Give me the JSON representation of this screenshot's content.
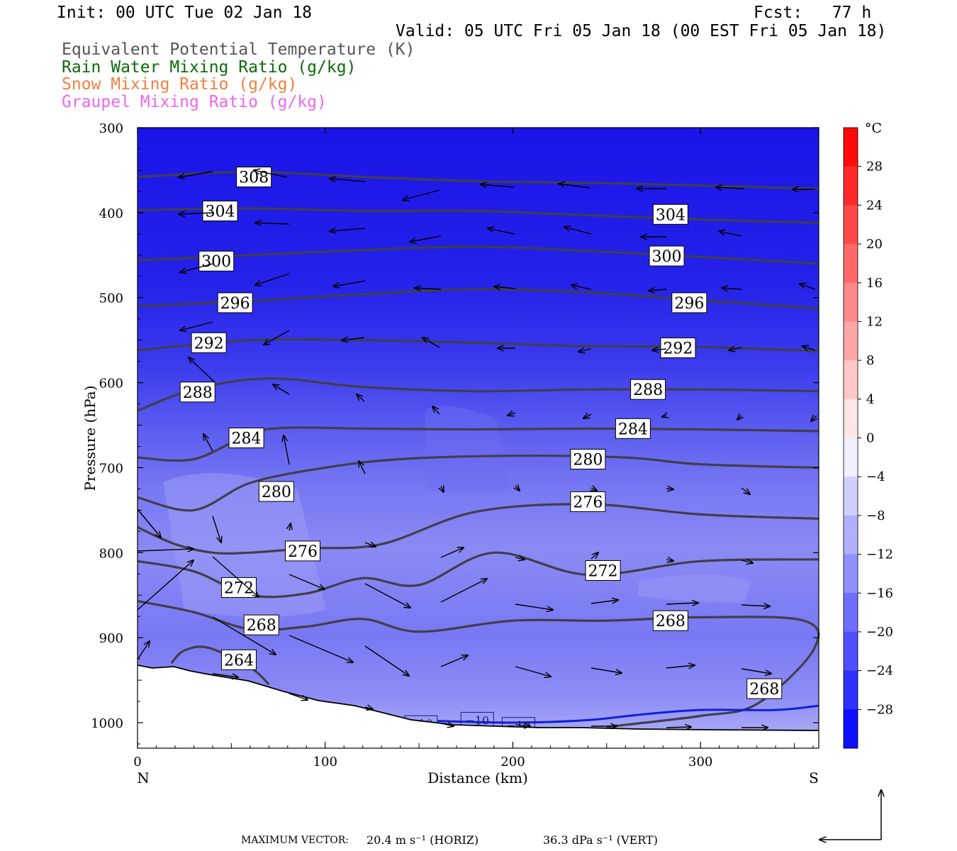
{
  "header": {
    "init": "Init: 00 UTC Tue 02 Jan 18",
    "fcst": "Fcst:   77 h",
    "valid": "Valid: 05 UTC Fri 05 Jan 18 (00 EST Fri 05 Jan 18)"
  },
  "legend": [
    {
      "label": "Equivalent Potential Temperature (K)",
      "color": "#555555"
    },
    {
      "label": "Rain Water Mixing Ratio (g/kg)",
      "color": "#0b6b0b"
    },
    {
      "label": "Snow Mixing Ratio (g/kg)",
      "color": "#f08040"
    },
    {
      "label": "Graupel Mixing Ratio (g/kg)",
      "color": "#ee66ee"
    }
  ],
  "axes": {
    "ylabel": "Pressure (hPa)",
    "xlabel": "Distance (km)",
    "yticks": [
      "300",
      "400",
      "500",
      "600",
      "700",
      "800",
      "900",
      "1000"
    ],
    "xticks": [
      "0",
      "100",
      "200",
      "300"
    ],
    "left_end": "N",
    "right_end": "S"
  },
  "colorbar": {
    "unit": "°C",
    "labels": [
      "28",
      "24",
      "20",
      "16",
      "12",
      "8",
      "4",
      "0",
      "−4",
      "−8",
      "−12",
      "−16",
      "−20",
      "−24",
      "−28"
    ]
  },
  "footer": {
    "max_vector_label": "MAXIMUM VECTOR:",
    "horiz": "20.4 m s⁻¹ (HORIZ)",
    "vert": "36.3 dPa s⁻¹ (VERT)"
  },
  "chart_data": {
    "type": "contour cross-section",
    "x_range_km": [
      0,
      363
    ],
    "y_range_hpa": [
      300,
      1030
    ],
    "theta_e_contours": [
      {
        "label": "308",
        "x": [
          0,
          60,
          120,
          180,
          240,
          300,
          363
        ],
        "p": [
          358,
          352,
          358,
          363,
          365,
          368,
          372
        ],
        "labels_at": [
          [
            62,
            358
          ]
        ]
      },
      {
        "label": "304",
        "x": [
          0,
          60,
          120,
          180,
          240,
          300,
          363
        ],
        "p": [
          397,
          395,
          398,
          398,
          403,
          408,
          412
        ],
        "labels_at": [
          [
            44,
            398
          ],
          [
            284,
            402
          ]
        ]
      },
      {
        "label": "300",
        "x": [
          0,
          60,
          120,
          180,
          240,
          300,
          363
        ],
        "p": [
          456,
          450,
          444,
          440,
          445,
          452,
          460
        ],
        "labels_at": [
          [
            42,
            457
          ],
          [
            282,
            451
          ]
        ]
      },
      {
        "label": "296",
        "x": [
          0,
          60,
          120,
          180,
          240,
          300,
          363
        ],
        "p": [
          510,
          504,
          496,
          490,
          494,
          503,
          513
        ],
        "labels_at": [
          [
            52,
            506
          ],
          [
            294,
            506
          ]
        ]
      },
      {
        "label": "292",
        "x": [
          0,
          60,
          120,
          180,
          240,
          300,
          363
        ],
        "p": [
          562,
          550,
          550,
          553,
          557,
          558,
          563
        ],
        "labels_at": [
          [
            38,
            553
          ],
          [
            288,
            559
          ]
        ]
      },
      {
        "label": "288",
        "x": [
          0,
          30,
          70,
          120,
          180,
          240,
          300,
          363
        ],
        "p": [
          633,
          608,
          595,
          605,
          610,
          608,
          608,
          610
        ],
        "labels_at": [
          [
            32,
            611
          ],
          [
            272,
            608
          ]
        ]
      },
      {
        "label": "284",
        "x": [
          0,
          30,
          60,
          80,
          120,
          180,
          240,
          300,
          363
        ],
        "p": [
          688,
          690,
          660,
          653,
          654,
          655,
          654,
          655,
          657
        ],
        "labels_at": [
          [
            58,
            665
          ],
          [
            264,
            654
          ]
        ]
      },
      {
        "label": "280",
        "x": [
          0,
          30,
          60,
          100,
          140,
          200,
          260,
          300,
          363
        ],
        "p": [
          735,
          750,
          718,
          700,
          690,
          686,
          688,
          696,
          700
        ],
        "labels_at": [
          [
            74,
            728
          ],
          [
            240,
            690
          ]
        ]
      },
      {
        "label": "276",
        "x": [
          0,
          20,
          40,
          60,
          90,
          130,
          180,
          240,
          300,
          363
        ],
        "p": [
          770,
          790,
          800,
          800,
          795,
          790,
          752,
          743,
          755,
          760
        ],
        "labels_at": [
          [
            88,
            798
          ],
          [
            240,
            740
          ]
        ]
      },
      {
        "label": "272",
        "x": [
          0,
          30,
          60,
          90,
          120,
          150,
          190,
          240,
          300,
          363
        ],
        "p": [
          810,
          822,
          850,
          848,
          830,
          838,
          800,
          826,
          810,
          808
        ],
        "labels_at": [
          [
            54,
            841
          ],
          [
            248,
            821
          ]
        ]
      },
      {
        "label": "268",
        "x": [
          0,
          30,
          60,
          90,
          120,
          150,
          200,
          250,
          300,
          355,
          360,
          330,
          300,
          250
        ],
        "p": [
          857,
          870,
          890,
          887,
          878,
          893,
          880,
          880,
          876,
          880,
          915,
          978,
          992,
          1005
        ],
        "labels_at": [
          [
            66,
            885
          ],
          [
            284,
            880
          ],
          [
            334,
            960
          ]
        ]
      },
      {
        "label": "264",
        "x": [
          18,
          25,
          38,
          60,
          70
        ],
        "p": [
          930,
          915,
          912,
          935,
          955
        ],
        "labels_at": [
          [
            54,
            926
          ]
        ]
      }
    ],
    "temperature_isotherm_minus10": {
      "label": "−10",
      "x": [
        160,
        200,
        240,
        270,
        300,
        340,
        363
      ],
      "p": [
        998,
        1000,
        997,
        990,
        985,
        985,
        980
      ],
      "labels_at": [
        [
          151,
          1001
        ],
        [
          181,
          997
        ],
        [
          203,
          1003
        ]
      ]
    }
  }
}
